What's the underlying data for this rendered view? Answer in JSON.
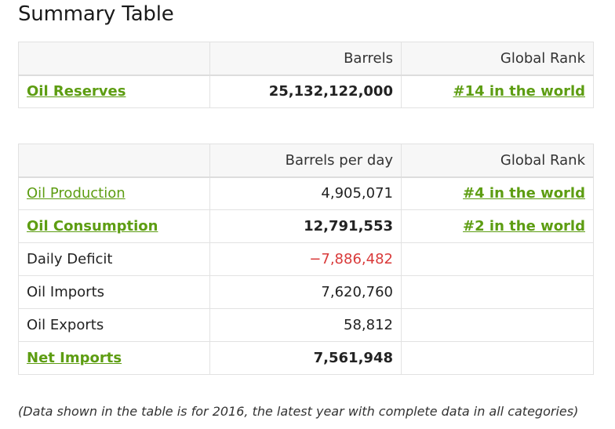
{
  "title": "Summary Table",
  "reserves_table": {
    "headers": [
      "",
      "Barrels",
      "Global Rank"
    ],
    "rows": [
      {
        "label": "Oil Reserves",
        "value": "25,132,122,000",
        "rank": "#14 in the world"
      }
    ]
  },
  "production_table": {
    "headers": [
      "",
      "Barrels per day",
      "Global Rank"
    ],
    "rows": [
      {
        "label": "Oil Production",
        "value": "4,905,071",
        "rank": "#4 in the world"
      },
      {
        "label": "Oil Consumption",
        "value": "12,791,553",
        "rank": "#2 in the world"
      },
      {
        "label": "Daily Deficit",
        "value": "−7,886,482",
        "rank": ""
      },
      {
        "label": "Oil Imports",
        "value": "7,620,760",
        "rank": ""
      },
      {
        "label": "Oil Exports",
        "value": "58,812",
        "rank": ""
      },
      {
        "label": "Net Imports",
        "value": "7,561,948",
        "rank": ""
      }
    ]
  },
  "footnote": "(Data shown in the table is for 2016, the latest year with complete data in all categories)",
  "colors": {
    "link": "#5d9d12",
    "negative": "#d93a3a",
    "header_bg": "#f7f7f7"
  }
}
